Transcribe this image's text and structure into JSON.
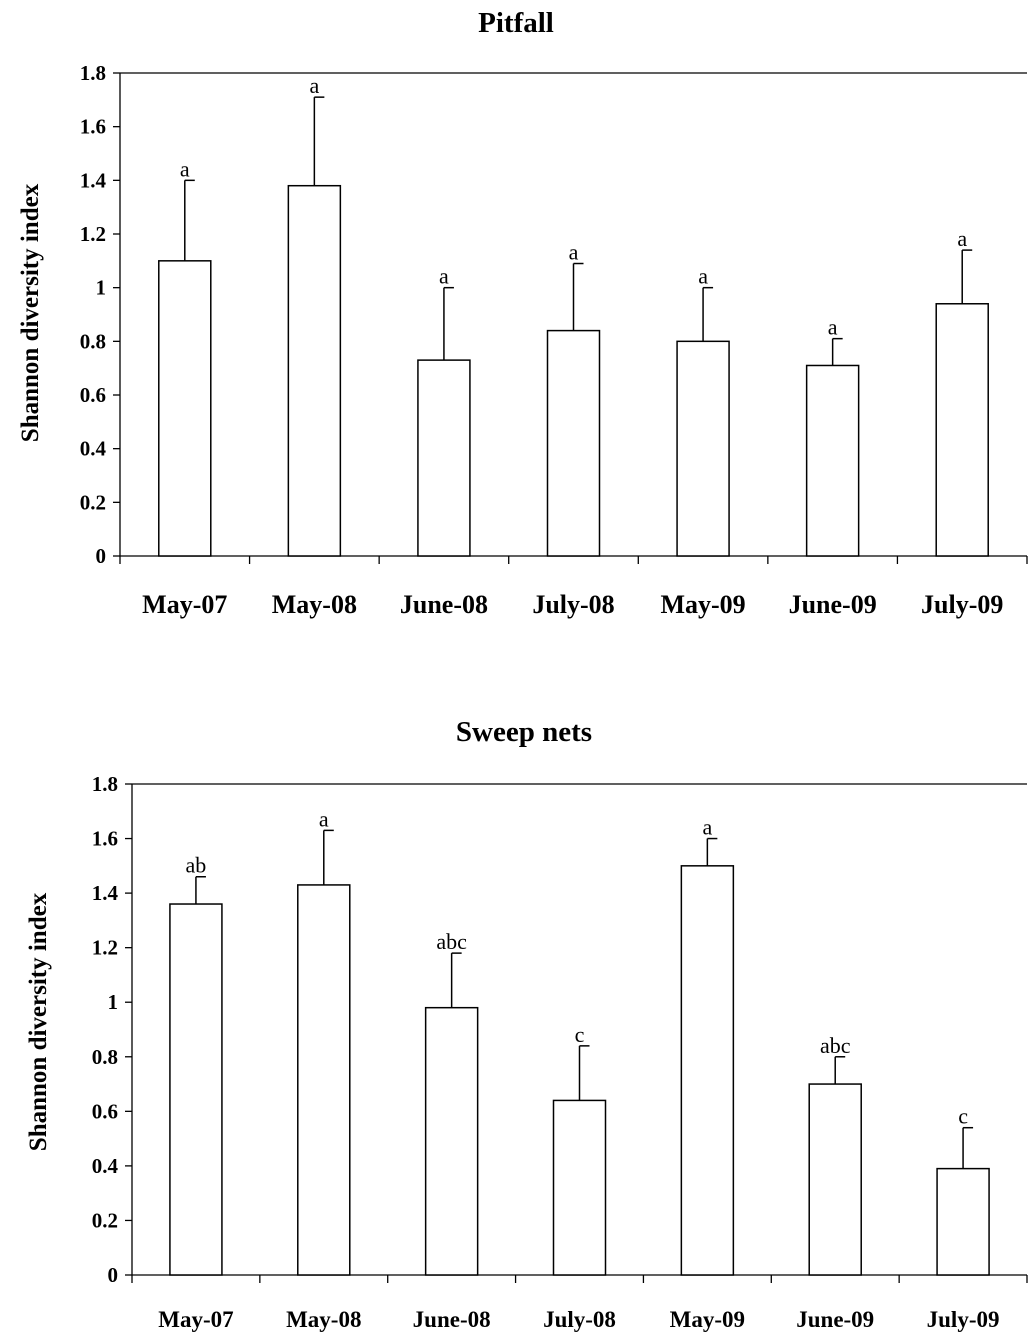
{
  "chart_data": [
    {
      "type": "bar",
      "title": "Pitfall",
      "ylabel": "Shannon diversity index",
      "xlabel": "",
      "categories": [
        "May-07",
        "May-08",
        "June-08",
        "July-08",
        "May-09",
        "June-09",
        "July-09"
      ],
      "values": [
        1.1,
        1.38,
        0.73,
        0.84,
        0.8,
        0.71,
        0.94
      ],
      "error_upper": [
        1.4,
        1.71,
        1.0,
        1.09,
        1.0,
        0.81,
        1.14
      ],
      "significance_labels": [
        "a",
        "a",
        "a",
        "a",
        "a",
        "a",
        "a"
      ],
      "ylim": [
        0,
        1.8
      ],
      "yticks": [
        "0",
        "0.2",
        "0.4",
        "0.6",
        "0.8",
        "1",
        "1.2",
        "1.4",
        "1.6",
        "1.8"
      ],
      "grid": false,
      "legend": "none"
    },
    {
      "type": "bar",
      "title": "Sweep nets",
      "ylabel": "Shannon diversity index",
      "xlabel": "",
      "categories": [
        "May-07",
        "May-08",
        "June-08",
        "July-08",
        "May-09",
        "June-09",
        "July-09"
      ],
      "values": [
        1.36,
        1.43,
        0.98,
        0.64,
        1.5,
        0.7,
        0.39
      ],
      "error_upper": [
        1.46,
        1.63,
        1.18,
        0.84,
        1.6,
        0.8,
        0.54
      ],
      "significance_labels": [
        "ab",
        "a",
        "abc",
        "c",
        "a",
        "abc",
        "c"
      ],
      "ylim": [
        0,
        1.8
      ],
      "yticks": [
        "0",
        "0.2",
        "0.4",
        "0.6",
        "0.8",
        "1",
        "1.2",
        "1.4",
        "1.6",
        "1.8"
      ],
      "grid": false,
      "legend": "none"
    }
  ]
}
